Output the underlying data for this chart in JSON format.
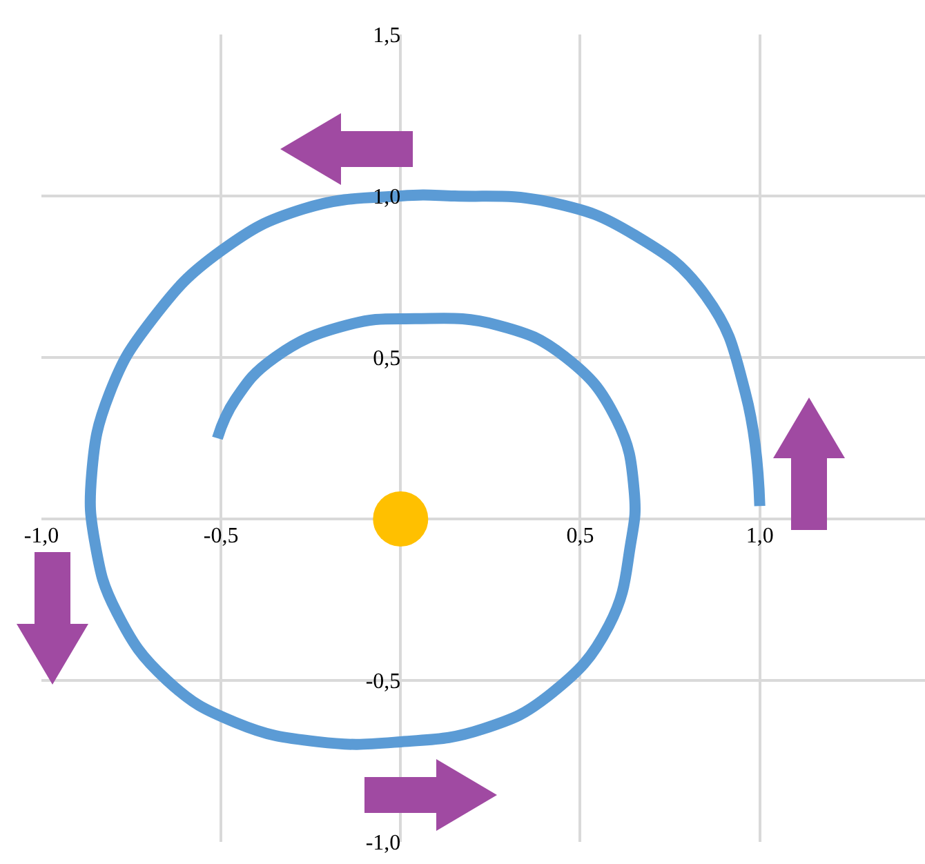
{
  "chart_data": {
    "type": "line",
    "xlim": [
      -1,
      1.46
    ],
    "ylim": [
      -1,
      1.5
    ],
    "xticks": [
      {
        "value": -1,
        "label": "-1,0"
      },
      {
        "value": -0.5,
        "label": "-0,5"
      },
      {
        "value": 0.5,
        "label": "0,5"
      },
      {
        "value": 1,
        "label": "1,0"
      }
    ],
    "yticks": [
      {
        "value": -1,
        "label": "-1,0"
      },
      {
        "value": -0.5,
        "label": "-0,5"
      },
      {
        "value": 0.5,
        "label": "0,5"
      },
      {
        "value": 1,
        "label": "1,0"
      },
      {
        "value": 1.5,
        "label": "1,5"
      }
    ],
    "grid": true,
    "line_style": "solid",
    "series": [
      {
        "color": "#5b9bd5",
        "x": [
          1.0,
          0.96,
          0.85,
          0.65,
          0.42,
          0.15,
          0,
          -0.27,
          -0.5,
          -0.69,
          -0.81,
          -0.86,
          -0.85,
          -0.79,
          -0.65,
          -0.46,
          -0.23,
          0,
          0.23,
          0.42,
          0.58,
          0.64,
          0.65,
          0.6,
          0.46,
          0.27,
          0.04,
          -0.15,
          -0.35,
          -0.46,
          -0.51
        ],
        "values": [
          0.04,
          0.39,
          0.69,
          0.88,
          0.98,
          1.0,
          1.0,
          0.96,
          0.83,
          0.62,
          0.39,
          0.14,
          -0.08,
          -0.29,
          -0.5,
          -0.63,
          -0.69,
          -0.69,
          -0.65,
          -0.54,
          -0.33,
          -0.08,
          0.09,
          0.31,
          0.5,
          0.6,
          0.62,
          0.6,
          0.5,
          0.37,
          0.25
        ]
      },
      {
        "type": "scatter",
        "color": "#ffc000",
        "x": [
          0
        ],
        "values": [
          0
        ]
      }
    ]
  }
}
